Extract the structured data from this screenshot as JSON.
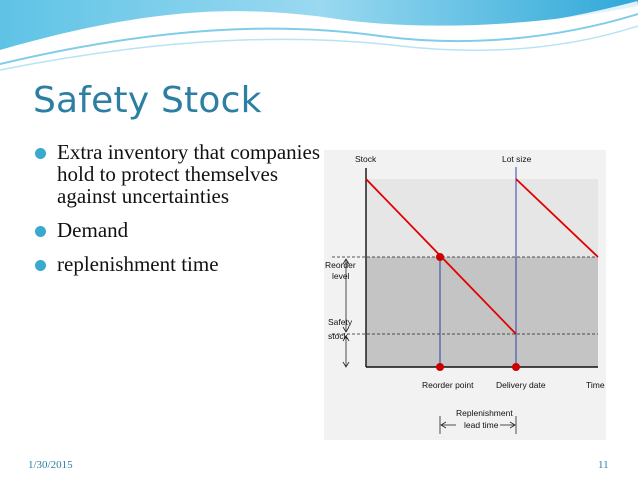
{
  "slide": {
    "title": "Safety Stock",
    "bullets": [
      "Extra inventory that companies hold to protect themselves against uncertainties",
      "Demand",
      "replenishment time"
    ],
    "footer_date": "1/30/2015",
    "page_number": "11"
  },
  "diagram": {
    "stock_label": "Stock",
    "lot_size_label": "Lot size",
    "reorder_level_label": [
      "Reorder",
      "level"
    ],
    "safety_stock_label": [
      "Safety",
      "stock"
    ],
    "reorder_point_label": "Reorder point",
    "delivery_date_label": "Delivery date",
    "time_label": "Time",
    "replenishment_label": [
      "Replenishment",
      "lead time"
    ]
  },
  "colors": {
    "title": "#2c7fa3",
    "bullet": "#39a9d1",
    "line": "#e00000",
    "marker": "#cc0000",
    "vline": "#2030a0",
    "upper_band": "#e6e6e6",
    "lower_band": "#c4c4c4",
    "frame": "#f2f2f2"
  }
}
